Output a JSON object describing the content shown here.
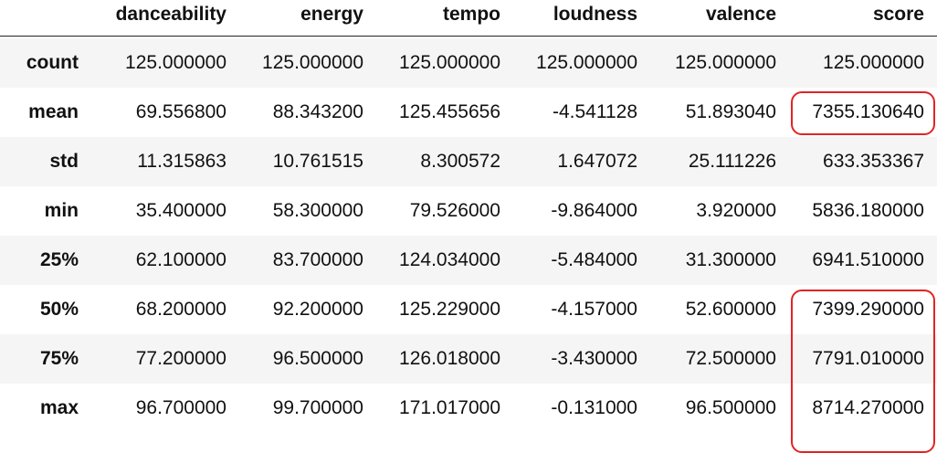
{
  "table": {
    "columns": [
      "danceability",
      "energy",
      "tempo",
      "loudness",
      "valence",
      "score"
    ],
    "rows": [
      {
        "index": "count",
        "values": [
          "125.000000",
          "125.000000",
          "125.000000",
          "125.000000",
          "125.000000",
          "125.000000"
        ]
      },
      {
        "index": "mean",
        "values": [
          "69.556800",
          "88.343200",
          "125.455656",
          "-4.541128",
          "51.893040",
          "7355.130640"
        ]
      },
      {
        "index": "std",
        "values": [
          "11.315863",
          "10.761515",
          "8.300572",
          "1.647072",
          "25.111226",
          "633.353367"
        ]
      },
      {
        "index": "min",
        "values": [
          "35.400000",
          "58.300000",
          "79.526000",
          "-9.864000",
          "3.920000",
          "5836.180000"
        ]
      },
      {
        "index": "25%",
        "values": [
          "62.100000",
          "83.700000",
          "124.034000",
          "-5.484000",
          "31.300000",
          "6941.510000"
        ]
      },
      {
        "index": "50%",
        "values": [
          "68.200000",
          "92.200000",
          "125.229000",
          "-4.157000",
          "52.600000",
          "7399.290000"
        ]
      },
      {
        "index": "75%",
        "values": [
          "77.200000",
          "96.500000",
          "126.018000",
          "-3.430000",
          "72.500000",
          "7791.010000"
        ]
      },
      {
        "index": "max",
        "values": [
          "96.700000",
          "99.700000",
          "171.017000",
          "-0.131000",
          "96.500000",
          "8714.270000"
        ]
      }
    ]
  },
  "annotations": {
    "color": "#e02424",
    "highlighted_cells": [
      "score/mean",
      "score/50%",
      "score/75%"
    ]
  }
}
